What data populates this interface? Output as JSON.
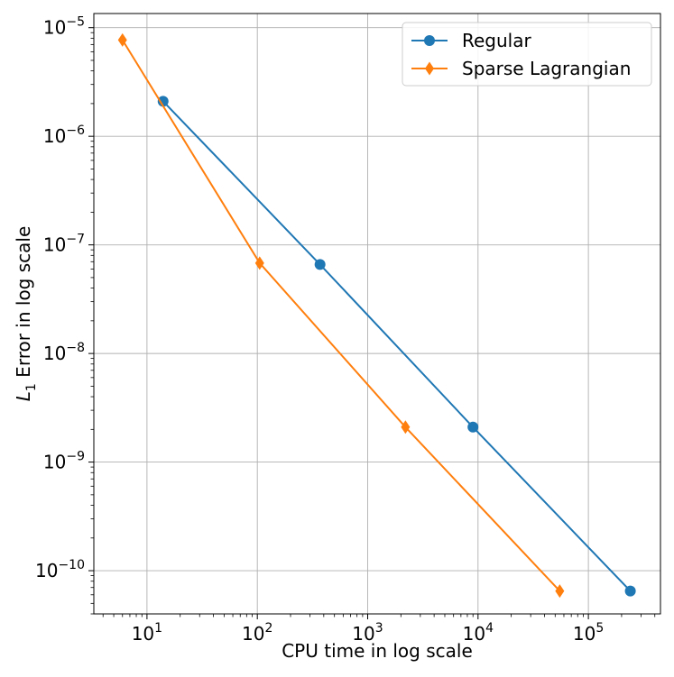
{
  "chart_data": {
    "type": "line",
    "xlabel": "CPU time in log scale",
    "ylabel_main": "L",
    "ylabel_sub": "1",
    "ylabel_rest": " Error in log scale",
    "xscale": "log",
    "yscale": "log",
    "xlim": [
      3.3,
      450000
    ],
    "ylim": [
      4e-11,
      1.35e-05
    ],
    "grid": true,
    "legend_position": "upper right",
    "x_ticks": [
      {
        "value": 10,
        "base": "10",
        "exp": "1"
      },
      {
        "value": 100,
        "base": "10",
        "exp": "2"
      },
      {
        "value": 1000,
        "base": "10",
        "exp": "3"
      },
      {
        "value": 10000,
        "base": "10",
        "exp": "4"
      },
      {
        "value": 100000,
        "base": "10",
        "exp": "5"
      }
    ],
    "y_ticks": [
      {
        "value": 1e-05,
        "base": "10",
        "exp": "−5"
      },
      {
        "value": 1e-06,
        "base": "10",
        "exp": "−6"
      },
      {
        "value": 1e-07,
        "base": "10",
        "exp": "−7"
      },
      {
        "value": 1e-08,
        "base": "10",
        "exp": "−8"
      },
      {
        "value": 1e-09,
        "base": "10",
        "exp": "−9"
      },
      {
        "value": 1e-10,
        "base": "10",
        "exp": "−10"
      }
    ],
    "series": [
      {
        "name": "Regular",
        "color": "#1f77b4",
        "marker": "circle",
        "x": [
          14,
          370,
          9000,
          240000
        ],
        "y": [
          2.1e-06,
          6.6e-08,
          2.1e-09,
          6.5e-11
        ]
      },
      {
        "name": "Sparse Lagrangian",
        "color": "#ff7f0e",
        "marker": "diamond",
        "x": [
          6,
          105,
          2200,
          55000
        ],
        "y": [
          7.7e-06,
          6.8e-08,
          2.1e-09,
          6.5e-11
        ]
      }
    ]
  }
}
